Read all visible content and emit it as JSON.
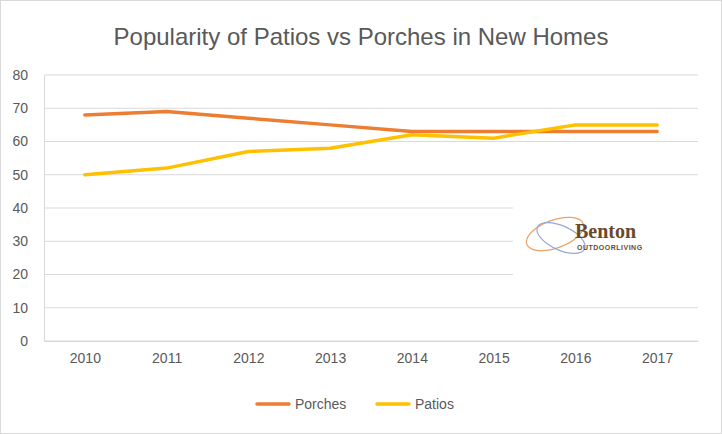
{
  "chart_data": {
    "type": "line",
    "title": "Popularity of Patios vs Porches in New Homes",
    "categories": [
      "2010",
      "2011",
      "2012",
      "2013",
      "2014",
      "2015",
      "2016",
      "2017"
    ],
    "series": [
      {
        "name": "Porches",
        "color": "#ED7D31",
        "values": [
          68,
          69,
          67,
          65,
          63,
          63,
          63,
          63
        ]
      },
      {
        "name": "Patios",
        "color": "#FFC000",
        "values": [
          50,
          52,
          57,
          58,
          62,
          61,
          65,
          65
        ]
      }
    ],
    "ylim": [
      0,
      80
    ],
    "yticks": [
      0,
      10,
      20,
      30,
      40,
      50,
      60,
      70,
      80
    ],
    "grid": true,
    "legend": "bottom",
    "annotations": [
      "Benton",
      "OUTDOORLIVING"
    ]
  }
}
